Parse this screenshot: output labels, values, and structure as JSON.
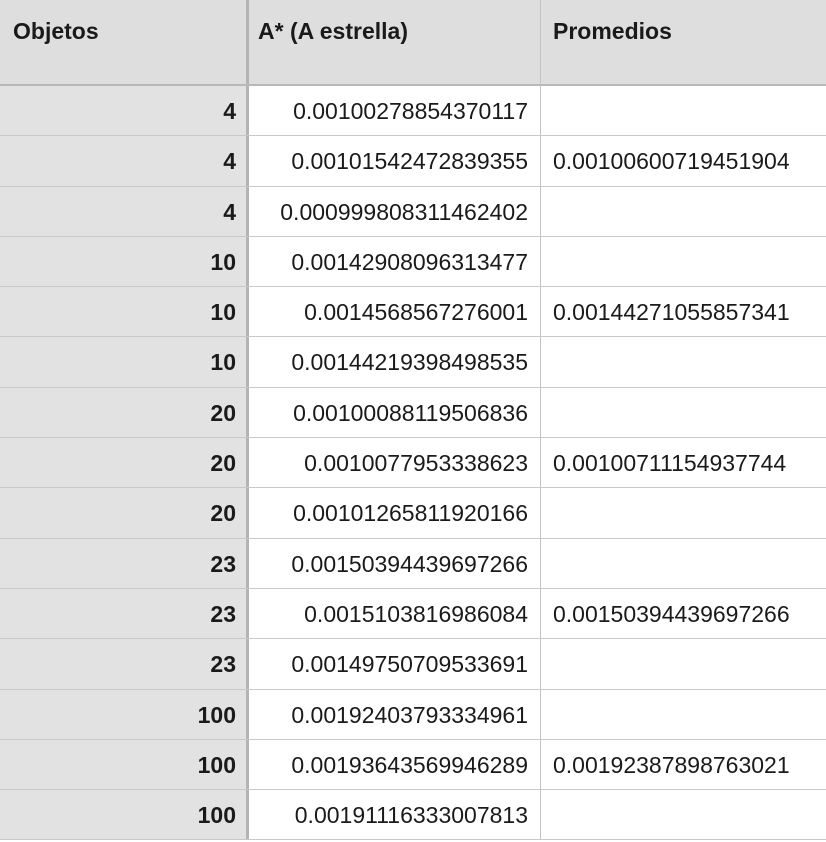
{
  "headers": {
    "col1": "Objetos",
    "col2": "A* (A estrella)",
    "col3": "Promedios"
  },
  "rows": [
    {
      "objetos": "4",
      "a_estrella": "0.00100278854370117",
      "promedio": ""
    },
    {
      "objetos": "4",
      "a_estrella": "0.00101542472839355",
      "promedio": "0.00100600719451904"
    },
    {
      "objetos": "4",
      "a_estrella": "0.000999808311462402",
      "promedio": ""
    },
    {
      "objetos": "10",
      "a_estrella": "0.00142908096313477",
      "promedio": ""
    },
    {
      "objetos": "10",
      "a_estrella": "0.0014568567276001",
      "promedio": "0.00144271055857341"
    },
    {
      "objetos": "10",
      "a_estrella": "0.00144219398498535",
      "promedio": ""
    },
    {
      "objetos": "20",
      "a_estrella": "0.00100088119506836",
      "promedio": ""
    },
    {
      "objetos": "20",
      "a_estrella": "0.0010077953338623",
      "promedio": "0.00100711154937744"
    },
    {
      "objetos": "20",
      "a_estrella": "0.00101265811920166",
      "promedio": ""
    },
    {
      "objetos": "23",
      "a_estrella": "0.00150394439697266",
      "promedio": ""
    },
    {
      "objetos": "23",
      "a_estrella": "0.0015103816986084",
      "promedio": "0.00150394439697266"
    },
    {
      "objetos": "23",
      "a_estrella": "0.00149750709533691",
      "promedio": ""
    },
    {
      "objetos": "100",
      "a_estrella": "0.00192403793334961",
      "promedio": ""
    },
    {
      "objetos": "100",
      "a_estrella": "0.00193643569946289",
      "promedio": "0.00192387898763021"
    },
    {
      "objetos": "100",
      "a_estrella": "0.00191116333007813",
      "promedio": ""
    }
  ]
}
